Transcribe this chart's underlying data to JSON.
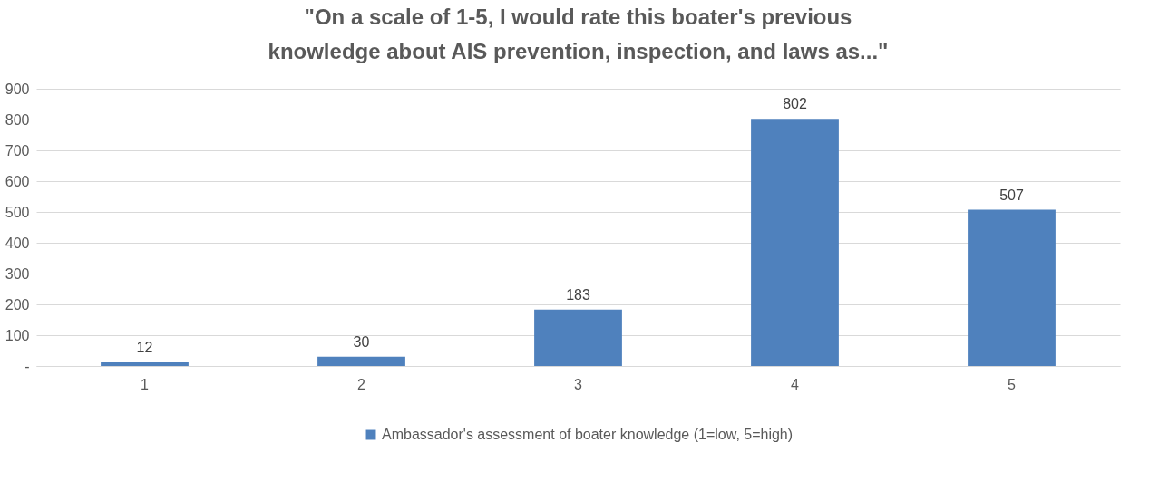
{
  "chart_data": {
    "type": "bar",
    "title": "\"On a scale of 1-5, I would rate this boater's previous knowledge about AIS prevention, inspection, and laws as...\"",
    "categories": [
      "1",
      "2",
      "3",
      "4",
      "5"
    ],
    "series": [
      {
        "name": "Ambassador's assessment of boater knowledge (1=low, 5=high)",
        "color": "#4f81bd",
        "values": [
          12,
          30,
          183,
          802,
          507
        ]
      }
    ],
    "ylim": [
      0,
      900
    ],
    "yticks": [
      {
        "value": 0,
        "label": "-"
      },
      100,
      200,
      300,
      400,
      500,
      600,
      700,
      800,
      900
    ],
    "grid": "y",
    "legend": "bottom",
    "data_labels": true
  }
}
